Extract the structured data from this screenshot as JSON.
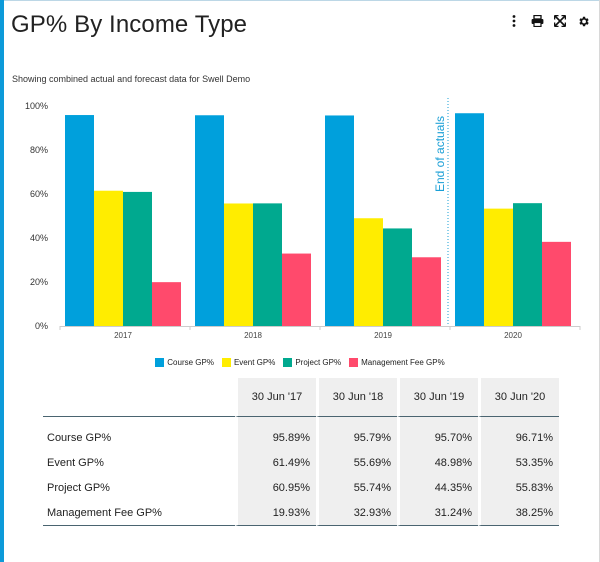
{
  "title": "GP% By Income Type",
  "subtitle": "Showing combined actual and forecast data for Swell Demo",
  "toolbar": {
    "icons": [
      "more-vert-icon",
      "print-icon",
      "expand-icon",
      "gear-icon"
    ]
  },
  "chart_data": {
    "type": "bar",
    "categories": [
      "2017",
      "2018",
      "2019",
      "2020"
    ],
    "series": [
      {
        "name": "Course GP%",
        "color": "#00a0dc",
        "values": [
          95.89,
          95.79,
          95.7,
          96.71
        ]
      },
      {
        "name": "Event GP%",
        "color": "#ffed00",
        "values": [
          61.49,
          55.69,
          48.98,
          53.35
        ]
      },
      {
        "name": "Project GP%",
        "color": "#00a98f",
        "values": [
          60.95,
          55.74,
          44.35,
          55.83
        ]
      },
      {
        "name": "Management Fee GP%",
        "color": "#ff4a6c",
        "values": [
          19.93,
          32.93,
          31.24,
          38.25
        ]
      }
    ],
    "y_ticks": [
      "0%",
      "20%",
      "40%",
      "60%",
      "80%",
      "100%"
    ],
    "ylim": [
      0,
      100
    ],
    "annotation": "End of actuals",
    "legend_position": "bottom",
    "grid": false
  },
  "table": {
    "columns": [
      "30 Jun '17",
      "30 Jun '18",
      "30 Jun '19",
      "30 Jun '20"
    ],
    "rows": [
      {
        "label": "Course GP%",
        "values": [
          "95.89%",
          "95.79%",
          "95.70%",
          "96.71%"
        ]
      },
      {
        "label": "Event GP%",
        "values": [
          "61.49%",
          "55.69%",
          "48.98%",
          "53.35%"
        ]
      },
      {
        "label": "Project GP%",
        "values": [
          "60.95%",
          "55.74%",
          "44.35%",
          "55.83%"
        ]
      },
      {
        "label": "Management Fee GP%",
        "values": [
          "19.93%",
          "32.93%",
          "31.24%",
          "38.25%"
        ]
      }
    ]
  }
}
